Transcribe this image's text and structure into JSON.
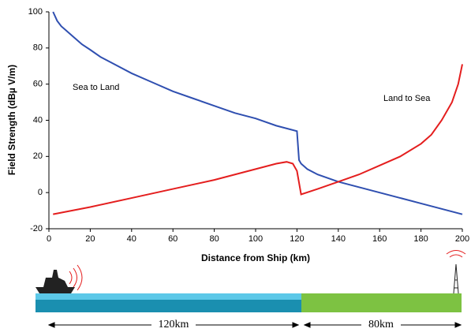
{
  "chart_data": {
    "type": "line",
    "y_label": "Field Strength (dBµ V/m)",
    "x_label": "Distance from Ship (km)",
    "xlim": [
      0,
      200
    ],
    "xticks": [
      0,
      20,
      40,
      60,
      80,
      100,
      120,
      140,
      160,
      180,
      200
    ],
    "ylim": [
      -20,
      100
    ],
    "yticks": [
      -20,
      0,
      20,
      40,
      60,
      80,
      100
    ],
    "grid": false,
    "series": [
      {
        "name": "Sea to Land",
        "color": "#2f4fb0",
        "x": [
          2,
          4,
          6,
          8,
          10,
          13,
          16,
          20,
          25,
          30,
          40,
          50,
          60,
          70,
          80,
          90,
          100,
          110,
          120,
          121,
          122,
          125,
          130,
          140,
          150,
          160,
          170,
          180,
          190,
          200
        ],
        "values": [
          100,
          95,
          92,
          90,
          88,
          85,
          82,
          79,
          75,
          72,
          66,
          61,
          56,
          52,
          48,
          44,
          41,
          37,
          34,
          18,
          16,
          13,
          10,
          6,
          3,
          0,
          -3,
          -6,
          -9,
          -12
        ]
      },
      {
        "name": "Land to Sea",
        "color": "#e41e1e",
        "x": [
          2,
          20,
          40,
          60,
          80,
          100,
          110,
          115,
          118,
          120,
          122,
          130,
          140,
          150,
          160,
          170,
          180,
          185,
          190,
          195,
          198,
          200
        ],
        "values": [
          -12,
          -8,
          -3,
          2,
          7,
          13,
          16,
          17,
          16,
          12,
          -1,
          2,
          6,
          10,
          15,
          20,
          27,
          32,
          40,
          50,
          60,
          71
        ]
      }
    ]
  },
  "diagram": {
    "sea_distance": "120km",
    "land_distance": "80km"
  }
}
